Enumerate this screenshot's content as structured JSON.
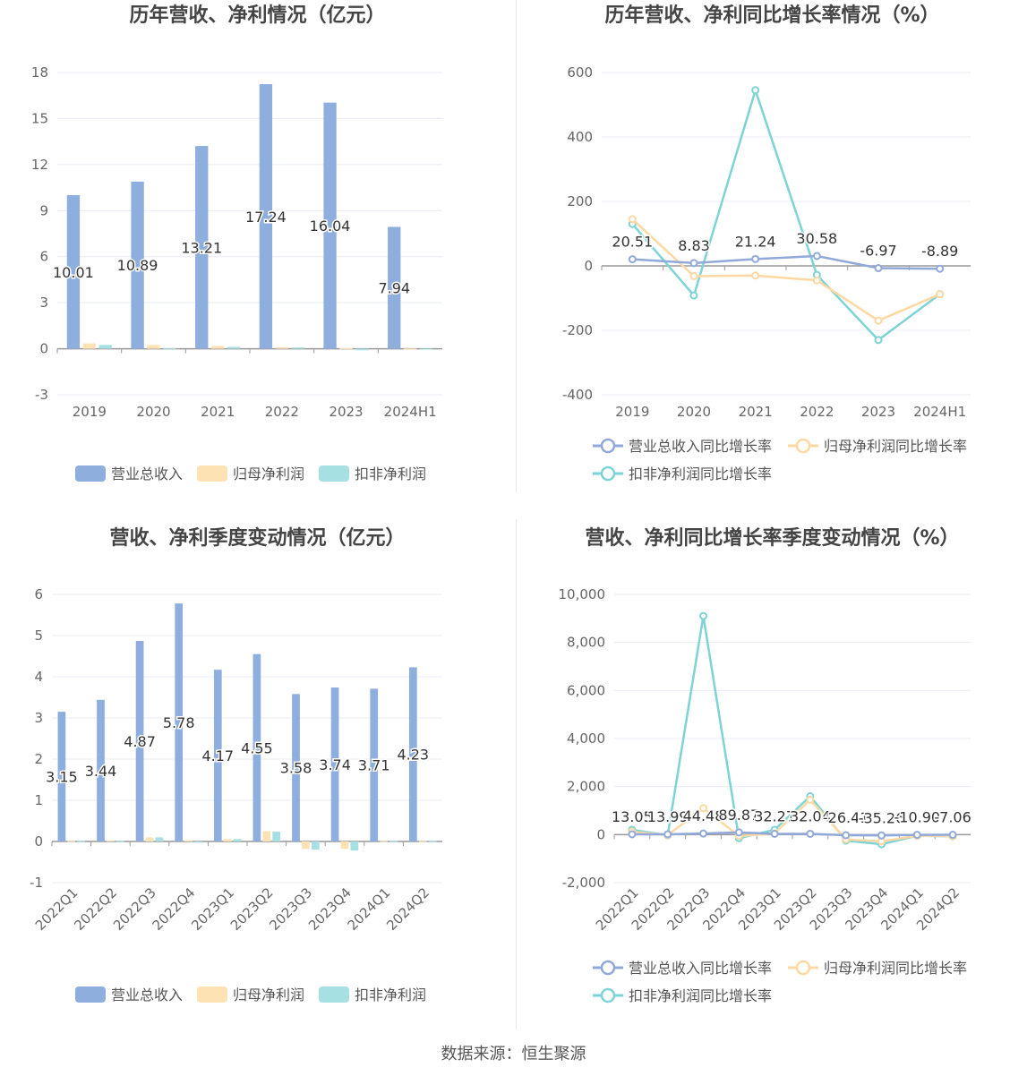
{
  "source": "数据来源：恒生聚源",
  "colors": {
    "revenue": "#8eaedd",
    "net_profit": "#fde2b3",
    "deducted_profit": "#a7e0e2",
    "revenue_line": "#91a9da",
    "net_line": "#fdd8a3",
    "deducted_line": "#7dd3d6",
    "grid": "#e8ecf3",
    "axis_text": "#666666",
    "title": "#444444"
  },
  "chart_data": [
    {
      "type": "bar",
      "title": "历年营收、净利情况（亿元）",
      "categories": [
        "2019",
        "2020",
        "2021",
        "2022",
        "2023",
        "2024H1"
      ],
      "ylim": [
        -3,
        18
      ],
      "yticks": [
        -3,
        0,
        3,
        6,
        9,
        12,
        15,
        18
      ],
      "series": [
        {
          "name": "营业总收入",
          "values": [
            10.01,
            10.89,
            13.21,
            17.24,
            16.04,
            7.94
          ],
          "labels": [
            "10.01",
            "10.89",
            "13.21",
            "17.24",
            "16.04",
            "7.94"
          ]
        },
        {
          "name": "归母净利润",
          "values": [
            0.35,
            0.25,
            0.18,
            0.1,
            0.03,
            0.01
          ]
        },
        {
          "name": "扣非净利润",
          "values": [
            0.25,
            0.02,
            0.12,
            0.08,
            -0.1,
            -0.02
          ]
        }
      ],
      "legend": "bottom",
      "grid": true
    },
    {
      "type": "line",
      "title": "历年营收、净利同比增长率情况（%）",
      "categories": [
        "2019",
        "2020",
        "2021",
        "2022",
        "2023",
        "2024H1"
      ],
      "ylim": [
        -400,
        600
      ],
      "yticks": [
        -400,
        -200,
        0,
        200,
        400,
        600
      ],
      "series": [
        {
          "name": "营业总收入同比增长率",
          "values": [
            20.51,
            8.83,
            21.24,
            30.58,
            -6.97,
            -8.89
          ],
          "labels": [
            "20.51",
            "8.83",
            "21.24",
            "30.58",
            "-6.97",
            "-8.89"
          ]
        },
        {
          "name": "归母净利润同比增长率",
          "values": [
            145,
            -32,
            -30,
            -45,
            -170,
            -88
          ]
        },
        {
          "name": "扣非净利润同比增长率",
          "values": [
            130,
            -92,
            545,
            -28,
            -230,
            -88
          ]
        }
      ],
      "legend": "bottom",
      "grid": true
    },
    {
      "type": "bar",
      "title": "营收、净利季度变动情况（亿元）",
      "categories": [
        "2022Q1",
        "2022Q2",
        "2022Q3",
        "2022Q4",
        "2023Q1",
        "2023Q2",
        "2023Q3",
        "2023Q4",
        "2024Q1",
        "2024Q2"
      ],
      "ylim": [
        -1,
        6
      ],
      "yticks": [
        -1,
        0,
        1,
        2,
        3,
        4,
        5,
        6
      ],
      "series": [
        {
          "name": "营业总收入",
          "values": [
            3.15,
            3.44,
            4.87,
            5.78,
            4.17,
            4.55,
            3.58,
            3.74,
            3.71,
            4.23
          ],
          "labels": [
            "3.15",
            "3.44",
            "4.87",
            "5.78",
            "4.17",
            "4.55",
            "3.58",
            "3.74",
            "3.71",
            "4.23"
          ]
        },
        {
          "name": "归母净利润",
          "values": [
            0.01,
            0.02,
            0.1,
            0.03,
            0.06,
            0.25,
            -0.18,
            -0.18,
            0.01,
            0.01
          ]
        },
        {
          "name": "扣非净利润",
          "values": [
            0.01,
            0.01,
            0.1,
            -0.03,
            0.06,
            0.24,
            -0.2,
            -0.22,
            0.01,
            0.01
          ]
        }
      ],
      "legend": "bottom",
      "grid": true
    },
    {
      "type": "line",
      "title": "营收、净利同比增长率季度变动情况（%）",
      "categories": [
        "2022Q1",
        "2022Q2",
        "2022Q3",
        "2022Q4",
        "2023Q1",
        "2023Q2",
        "2023Q3",
        "2023Q4",
        "2024Q1",
        "2024Q2"
      ],
      "ylim": [
        -2000,
        10000
      ],
      "yticks": [
        -2000,
        0,
        2000,
        4000,
        6000,
        8000,
        10000
      ],
      "series": [
        {
          "name": "营业总收入同比增长率",
          "values": [
            13.05,
            13.99,
            44.48,
            89.87,
            32.27,
            32.04,
            -26.41,
            -35.26,
            -10.9,
            -7.06
          ],
          "labels": [
            "13.05",
            "13.99",
            "44.48",
            "89.87",
            "32.27",
            "32.04",
            "-26.41",
            "-35.26",
            "-10.90",
            "-7.06"
          ]
        },
        {
          "name": "归母净利润同比增长率",
          "values": [
            120,
            -20,
            1100,
            -60,
            50,
            1450,
            -200,
            -280,
            -50,
            -60
          ]
        },
        {
          "name": "扣非净利润同比增长率",
          "values": [
            200,
            -30,
            9100,
            -150,
            200,
            1600,
            -250,
            -400,
            -50,
            -70
          ]
        }
      ],
      "legend": "bottom",
      "grid": true
    }
  ]
}
